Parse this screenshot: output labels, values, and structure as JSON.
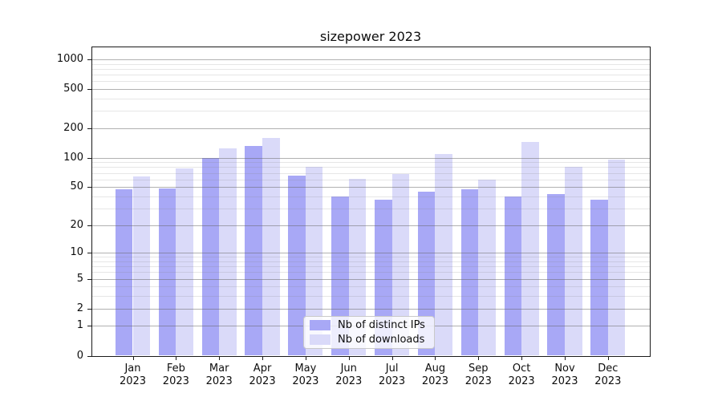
{
  "title": "sizepower 2023",
  "chart_data": {
    "type": "bar",
    "title": "sizepower 2023",
    "x": {
      "months": [
        "Jan",
        "Feb",
        "Mar",
        "Apr",
        "May",
        "Jun",
        "Jul",
        "Aug",
        "Sep",
        "Oct",
        "Nov",
        "Dec"
      ],
      "year": "2023"
    },
    "categories": [
      "Jan 2023",
      "Feb 2023",
      "Mar 2023",
      "Apr 2023",
      "May 2023",
      "Jun 2023",
      "Jul 2023",
      "Aug 2023",
      "Sep 2023",
      "Oct 2023",
      "Nov 2023",
      "Dec 2023"
    ],
    "series": [
      {
        "name": "Nb of distinct IPs",
        "color": "#a8a8f6",
        "values": [
          47,
          48,
          100,
          131,
          65,
          40,
          37,
          45,
          47,
          40,
          42,
          37
        ]
      },
      {
        "name": "Nb of downloads",
        "color": "#dadaf9",
        "values": [
          64,
          78,
          124,
          158,
          80,
          61,
          68,
          109,
          60,
          145,
          81,
          96
        ]
      }
    ],
    "yscale": "log10(1+y)",
    "y_ticks": [
      0,
      1,
      2,
      5,
      10,
      20,
      50,
      100,
      200,
      500,
      1000
    ],
    "y_minor_ticks": [
      3,
      4,
      6,
      7,
      8,
      9,
      30,
      40,
      60,
      70,
      80,
      90,
      300,
      400,
      600,
      700,
      800,
      900
    ],
    "ylim": [
      0,
      1300
    ],
    "xlabel": "",
    "ylabel": "",
    "grid": "major and minor horizontal lines drawn above bars",
    "legend_position": "lower center"
  },
  "colors": {
    "background": "#ffffff",
    "bar_distinct_ips": "#a8a8f6",
    "bar_downloads": "#dadaf9",
    "grid_major": "#b0b0b0",
    "grid_minor": "#e3e3e3",
    "axis": "#1a1a1a",
    "legend_border": "#c9c9c9"
  }
}
